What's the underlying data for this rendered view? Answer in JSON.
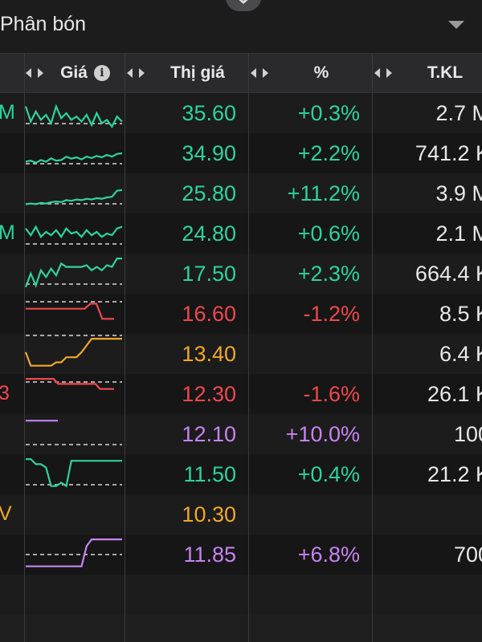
{
  "header_title": "Phân bón",
  "columns": {
    "sparkline": "Giá",
    "price": "Thị giá",
    "change": "%",
    "volume": "T.KL"
  },
  "colors": {
    "up": "#2ed39b",
    "down": "#f0484c",
    "ref": "#f0a829",
    "ceiling": "#c684f0"
  },
  "rows": [
    {
      "symbol_fragment": "M",
      "price": "35.60",
      "change": "+0.3%",
      "volume": "2.7 M",
      "status": "up",
      "spark": [
        0.3,
        0.75,
        0.45,
        0.7,
        0.55,
        0.8,
        0.3,
        0.65,
        0.5,
        0.7,
        0.6,
        0.75,
        0.55,
        0.85,
        0.5,
        0.8,
        0.7,
        0.9,
        0.6,
        0.75
      ]
    },
    {
      "symbol_fragment": "",
      "price": "34.90",
      "change": "+2.2%",
      "volume": "741.2 K",
      "status": "up",
      "spark": [
        0.75,
        0.72,
        0.78,
        0.7,
        0.75,
        0.65,
        0.72,
        0.7,
        0.6,
        0.66,
        0.62,
        0.68,
        0.6,
        0.64,
        0.58,
        0.62,
        0.55,
        0.6,
        0.52,
        0.5
      ]
    },
    {
      "symbol_fragment": "",
      "price": "25.80",
      "change": "+11.2%",
      "volume": "3.9 M",
      "status": "up",
      "spark": [
        0.82,
        0.8,
        0.82,
        0.78,
        0.8,
        0.76,
        0.74,
        0.76,
        0.7,
        0.72,
        0.68,
        0.7,
        0.66,
        0.68,
        0.64,
        0.66,
        0.62,
        0.6,
        0.42,
        0.4
      ]
    },
    {
      "symbol_fragment": "M",
      "price": "24.80",
      "change": "+0.6%",
      "volume": "2.1 M",
      "status": "up",
      "spark": [
        0.35,
        0.55,
        0.3,
        0.6,
        0.45,
        0.55,
        0.4,
        0.6,
        0.35,
        0.5,
        0.45,
        0.6,
        0.4,
        0.55,
        0.45,
        0.6,
        0.5,
        0.55,
        0.35,
        0.3
      ]
    },
    {
      "symbol_fragment": "",
      "price": "17.50",
      "change": "+2.3%",
      "volume": "664.4 K",
      "status": "up",
      "spark": [
        0.9,
        0.5,
        0.85,
        0.4,
        0.6,
        0.35,
        0.55,
        0.2,
        0.3,
        0.3,
        0.3,
        0.3,
        0.25,
        0.4,
        0.3,
        0.4,
        0.25,
        0.3,
        0.05,
        0.05
      ]
    },
    {
      "symbol_fragment": "",
      "price": "16.60",
      "change": "-1.2%",
      "volume": "8.5 K",
      "status": "down",
      "spark": [
        0.35,
        0.35,
        0.35,
        0.35,
        0.35,
        0.35,
        0.35,
        0.35,
        0.35,
        0.35,
        0.35,
        0.2,
        0.2,
        0.65,
        0.65,
        0.65
      ]
    },
    {
      "symbol_fragment": "",
      "price": "13.40",
      "change": "",
      "volume": "6.4 K",
      "status": "ref",
      "spark": [
        0.45,
        0.85,
        0.85,
        0.85,
        0.85,
        0.85,
        0.75,
        0.75,
        0.6,
        0.6,
        0.6,
        0.45,
        0.25,
        0.05,
        0.05,
        0.05,
        0.05,
        0.05,
        0.05,
        0.05
      ]
    },
    {
      "symbol_fragment": "3",
      "price": "12.30",
      "change": "-1.6%",
      "volume": "26.1 K",
      "status": "down",
      "spark": [
        0.05,
        0.05,
        0.05,
        0.05,
        0.05,
        0.05,
        0.05,
        0.2,
        0.2,
        0.2,
        0.2,
        0.2,
        0.2,
        0.2,
        0.2,
        0.2,
        0.35,
        0.35,
        0.35,
        0.35
      ]
    },
    {
      "symbol_fragment": "",
      "price": "12.10",
      "change": "+10.0%",
      "volume": "100",
      "status": "ceiling",
      "spark": [
        0.1,
        0.1,
        0.1,
        0.1,
        0.1,
        0.1
      ]
    },
    {
      "symbol_fragment": "",
      "price": "11.50",
      "change": "+0.4%",
      "volume": "21.2 K",
      "status": "up",
      "spark": [
        0.05,
        0.05,
        0.2,
        0.2,
        0.3,
        0.85,
        0.85,
        0.75,
        0.85,
        0.1,
        0.1,
        0.1,
        0.1,
        0.1,
        0.1,
        0.1,
        0.1,
        0.1,
        0.1,
        0.1
      ]
    },
    {
      "symbol_fragment": "V",
      "price": "10.30",
      "change": "",
      "volume": "",
      "status": "ref",
      "spark": []
    },
    {
      "symbol_fragment": "",
      "price": "11.85",
      "change": "+6.8%",
      "volume": "700",
      "status": "ceiling",
      "spark": [
        0.85,
        0.85,
        0.85,
        0.85,
        0.85,
        0.85,
        0.85,
        0.85,
        0.85,
        0.85,
        0.85,
        0.85,
        0.25,
        0.05,
        0.05,
        0.05,
        0.05,
        0.05,
        0.05,
        0.05
      ]
    }
  ]
}
